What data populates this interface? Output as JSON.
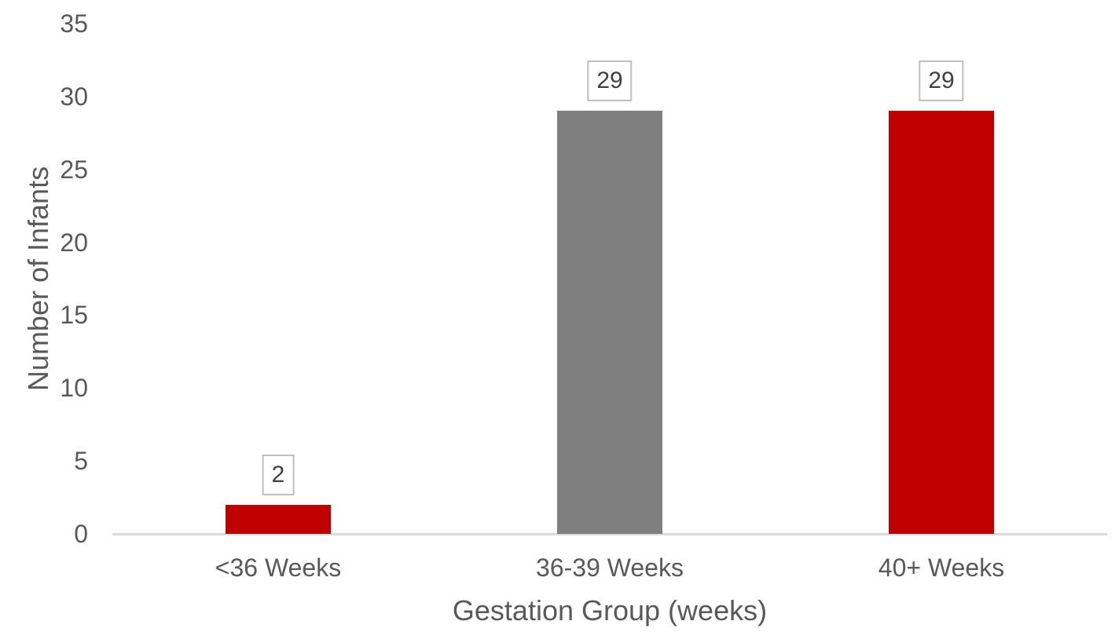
{
  "chart_data": {
    "type": "bar",
    "categories": [
      "<36 Weeks",
      "36-39 Weeks",
      "40+ Weeks"
    ],
    "values": [
      2,
      29,
      29
    ],
    "data_labels": [
      "2",
      "29",
      "29"
    ],
    "colors": [
      "#C00000",
      "#7F7F7F",
      "#C00000"
    ],
    "xlabel": "Gestation Group (weeks)",
    "ylabel": "Number of Infants",
    "ylim": [
      0,
      35
    ],
    "yticks": [
      0,
      5,
      10,
      15,
      20,
      25,
      30,
      35
    ],
    "grid": false,
    "legend": "none",
    "data_label_style": "boxed",
    "style": {
      "bar_red": "#C00000",
      "bar_gray": "#7F7F7F",
      "text_color": "#595959",
      "data_label_text": "#404040",
      "data_label_border": "#BFBFBF",
      "axis_line_color": "#D9D9D9",
      "background": "#FFFFFF"
    }
  }
}
